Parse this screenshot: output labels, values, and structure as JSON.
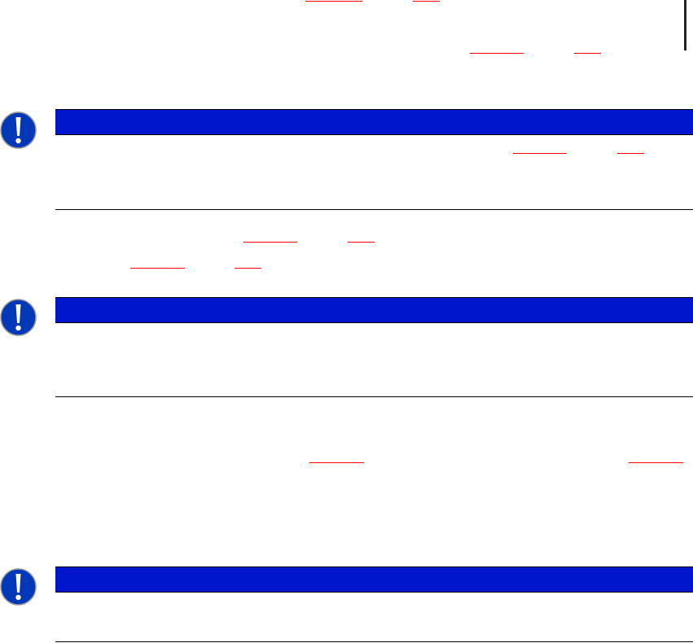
{
  "colors": {
    "notice_bar": "#0016cc",
    "link_underline": "#ff0000",
    "rule": "#000000",
    "icon_fill": "#0038b8"
  },
  "notices": [
    {
      "icon": "exclamation-icon",
      "title": "",
      "body": ""
    },
    {
      "icon": "exclamation-icon",
      "title": "",
      "body": ""
    },
    {
      "icon": "exclamation-icon",
      "title": "",
      "body": ""
    }
  ]
}
